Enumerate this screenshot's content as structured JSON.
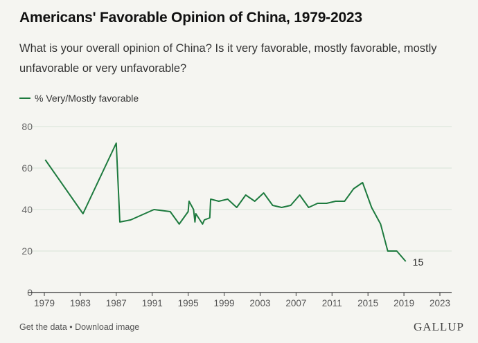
{
  "header": {
    "title": "Americans' Favorable Opinion of China, 1979-2023",
    "subtitle": "What is your overall opinion of China? Is it very favorable, mostly favorable, mostly unfavorable or very unfavorable?"
  },
  "footer": {
    "get_data": "Get the data",
    "separator": " • ",
    "download": "Download image",
    "brand": "GALLUP"
  },
  "colors": {
    "line": "#1d7a3e",
    "grid": "#d8e2d8",
    "background": "#f5f5f1"
  },
  "chart_data": {
    "type": "line",
    "title": "",
    "xlabel": "",
    "ylabel": "",
    "ylim": [
      0,
      80
    ],
    "yticks": [
      0,
      20,
      40,
      60,
      80
    ],
    "xlim": [
      1979,
      2023
    ],
    "xticks": [
      1979,
      1983,
      1987,
      1991,
      1995,
      1999,
      2003,
      2007,
      2011,
      2015,
      2019,
      2023
    ],
    "grid": true,
    "legend_position": "top-left",
    "series": [
      {
        "name": "% Very/Mostly favorable",
        "end_label": "15",
        "points": [
          [
            1979.1,
            64
          ],
          [
            1983.3,
            38
          ],
          [
            1987.0,
            72
          ],
          [
            1987.4,
            34
          ],
          [
            1988.6,
            35
          ],
          [
            1991.2,
            40
          ],
          [
            1993.0,
            39
          ],
          [
            1994.0,
            33
          ],
          [
            1995.0,
            39
          ],
          [
            1995.1,
            44
          ],
          [
            1995.6,
            40
          ],
          [
            1995.75,
            34
          ],
          [
            1995.85,
            38
          ],
          [
            1996.6,
            33
          ],
          [
            1996.8,
            35
          ],
          [
            1997.4,
            36
          ],
          [
            1997.5,
            45
          ],
          [
            1998.4,
            44
          ],
          [
            1999.4,
            45
          ],
          [
            2000.4,
            41
          ],
          [
            2001.4,
            47
          ],
          [
            2002.4,
            44
          ],
          [
            2003.4,
            48
          ],
          [
            2004.4,
            42
          ],
          [
            2005.4,
            41
          ],
          [
            2006.4,
            42
          ],
          [
            2007.4,
            47
          ],
          [
            2008.4,
            41
          ],
          [
            2009.4,
            43
          ],
          [
            2010.4,
            43
          ],
          [
            2011.4,
            44
          ],
          [
            2012.4,
            44
          ],
          [
            2013.4,
            50
          ],
          [
            2014.4,
            53
          ],
          [
            2015.4,
            41
          ],
          [
            2016.4,
            33
          ],
          [
            2017.2,
            20
          ],
          [
            2018.2,
            20
          ],
          [
            2019.2,
            15
          ]
        ]
      }
    ]
  }
}
